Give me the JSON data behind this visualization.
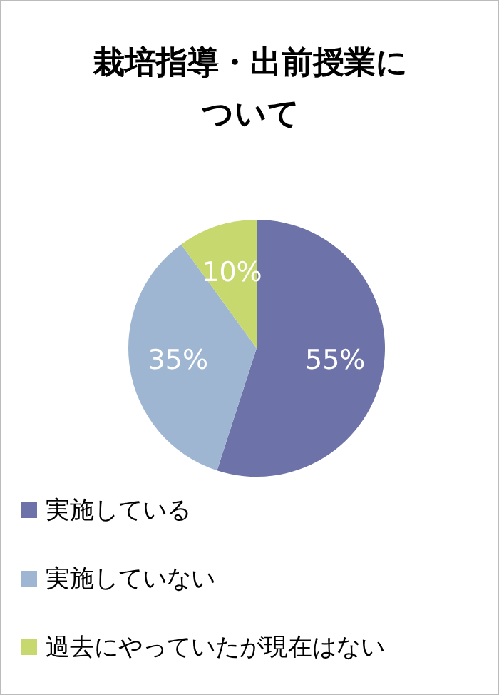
{
  "chart_data": {
    "type": "pie",
    "title": "栽培指導・出前授業について",
    "categories": [
      "実施している",
      "実施していない",
      "過去にやっていたが現在はない"
    ],
    "values": [
      55,
      35,
      10
    ],
    "colors": [
      "#6d73a8",
      "#9fb6d2",
      "#c6d86e"
    ],
    "value_labels": [
      "55%",
      "35%",
      "10%"
    ],
    "legend": "bottom"
  }
}
